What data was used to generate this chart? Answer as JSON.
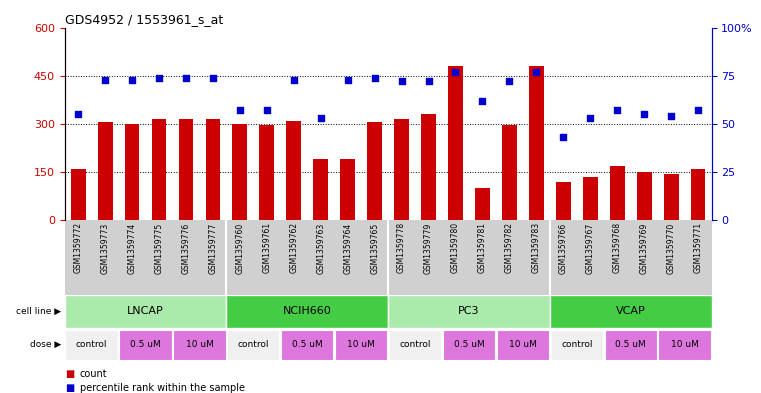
{
  "title": "GDS4952 / 1553961_s_at",
  "samples": [
    "GSM1359772",
    "GSM1359773",
    "GSM1359774",
    "GSM1359775",
    "GSM1359776",
    "GSM1359777",
    "GSM1359760",
    "GSM1359761",
    "GSM1359762",
    "GSM1359763",
    "GSM1359764",
    "GSM1359765",
    "GSM1359778",
    "GSM1359779",
    "GSM1359780",
    "GSM1359781",
    "GSM1359782",
    "GSM1359783",
    "GSM1359766",
    "GSM1359767",
    "GSM1359768",
    "GSM1359769",
    "GSM1359770",
    "GSM1359771"
  ],
  "bar_values": [
    160,
    305,
    300,
    315,
    315,
    315,
    300,
    295,
    310,
    190,
    190,
    305,
    315,
    330,
    480,
    100,
    295,
    480,
    120,
    135,
    170,
    150,
    145,
    160
  ],
  "dot_values": [
    55,
    73,
    73,
    74,
    74,
    74,
    57,
    57,
    73,
    53,
    73,
    74,
    72,
    72,
    77,
    62,
    72,
    77,
    43,
    53,
    57,
    55,
    54,
    57
  ],
  "cell_lines": [
    {
      "name": "LNCAP",
      "start": 0,
      "end": 6
    },
    {
      "name": "NCIH660",
      "start": 6,
      "end": 12
    },
    {
      "name": "PC3",
      "start": 12,
      "end": 18
    },
    {
      "name": "VCAP",
      "start": 18,
      "end": 24
    }
  ],
  "dose_groups": [
    {
      "name": "control",
      "start": 0,
      "end": 2,
      "is_control": true
    },
    {
      "name": "0.5 uM",
      "start": 2,
      "end": 4,
      "is_control": false
    },
    {
      "name": "10 uM",
      "start": 4,
      "end": 6,
      "is_control": false
    },
    {
      "name": "control",
      "start": 6,
      "end": 8,
      "is_control": true
    },
    {
      "name": "0.5 uM",
      "start": 8,
      "end": 10,
      "is_control": false
    },
    {
      "name": "10 uM",
      "start": 10,
      "end": 12,
      "is_control": false
    },
    {
      "name": "control",
      "start": 12,
      "end": 14,
      "is_control": true
    },
    {
      "name": "0.5 uM",
      "start": 14,
      "end": 16,
      "is_control": false
    },
    {
      "name": "10 uM",
      "start": 16,
      "end": 18,
      "is_control": false
    },
    {
      "name": "control",
      "start": 18,
      "end": 20,
      "is_control": true
    },
    {
      "name": "0.5 uM",
      "start": 20,
      "end": 22,
      "is_control": false
    },
    {
      "name": "10 uM",
      "start": 22,
      "end": 24,
      "is_control": false
    }
  ],
  "bar_color": "#cc0000",
  "dot_color": "#0000cc",
  "cell_line_color_light": "#aaeaaa",
  "cell_line_color_dark": "#44cc44",
  "dose_color_control": "#f0f0f0",
  "dose_color_treatment": "#dd77dd",
  "label_bg": "#d0d0d0",
  "ylim_left": [
    0,
    600
  ],
  "ylim_right": [
    0,
    100
  ],
  "yticks_left": [
    0,
    150,
    300,
    450,
    600
  ],
  "yticks_right": [
    0,
    25,
    50,
    75,
    100
  ],
  "grid_values": [
    150,
    300,
    450
  ],
  "left_axis_color": "#cc0000",
  "right_axis_color": "#0000cc"
}
